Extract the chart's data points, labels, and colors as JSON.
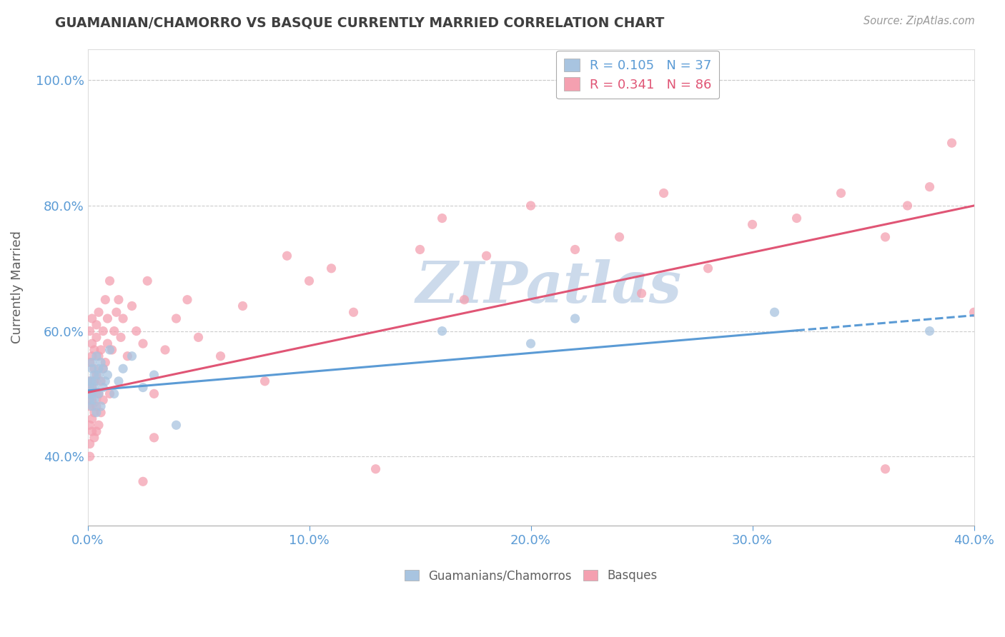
{
  "title": "GUAMANIAN/CHAMORRO VS BASQUE CURRENTLY MARRIED CORRELATION CHART",
  "source": "Source: ZipAtlas.com",
  "xlabel_legend1": "Guamanians/Chamorros",
  "xlabel_legend2": "Basques",
  "ylabel": "Currently Married",
  "r1": 0.105,
  "n1": 37,
  "r2": 0.341,
  "n2": 86,
  "color1": "#a8c4e0",
  "color2": "#f4a0b0",
  "line1_color": "#5b9bd5",
  "line2_color": "#e05575",
  "title_color": "#3f3f3f",
  "axis_color": "#5b9bd5",
  "watermark_color": "#ccdaeb",
  "xlim": [
    0.0,
    0.4
  ],
  "ylim": [
    0.29,
    1.05
  ],
  "yticks": [
    0.4,
    0.6,
    0.8,
    1.0
  ],
  "xticks": [
    0.0,
    0.1,
    0.2,
    0.3,
    0.4
  ],
  "guam_x": [
    0.001,
    0.001,
    0.001,
    0.001,
    0.002,
    0.002,
    0.002,
    0.002,
    0.002,
    0.003,
    0.003,
    0.003,
    0.004,
    0.004,
    0.004,
    0.005,
    0.005,
    0.005,
    0.006,
    0.006,
    0.007,
    0.007,
    0.008,
    0.009,
    0.01,
    0.012,
    0.014,
    0.016,
    0.02,
    0.025,
    0.03,
    0.04,
    0.16,
    0.2,
    0.22,
    0.31,
    0.38
  ],
  "guam_y": [
    0.5,
    0.52,
    0.49,
    0.51,
    0.54,
    0.48,
    0.55,
    0.5,
    0.52,
    0.51,
    0.53,
    0.49,
    0.56,
    0.47,
    0.52,
    0.54,
    0.5,
    0.53,
    0.55,
    0.48,
    0.54,
    0.51,
    0.52,
    0.53,
    0.57,
    0.5,
    0.52,
    0.54,
    0.56,
    0.51,
    0.53,
    0.45,
    0.6,
    0.58,
    0.62,
    0.63,
    0.6
  ],
  "guam_size": [
    80,
    80,
    80,
    80,
    80,
    80,
    80,
    80,
    80,
    80,
    80,
    80,
    80,
    80,
    80,
    80,
    80,
    80,
    80,
    80,
    80,
    80,
    80,
    80,
    80,
    80,
    80,
    80,
    80,
    80,
    80,
    80,
    80,
    80,
    80,
    80,
    80
  ],
  "basque_x": [
    0.001,
    0.001,
    0.001,
    0.001,
    0.001,
    0.001,
    0.001,
    0.001,
    0.002,
    0.002,
    0.002,
    0.002,
    0.002,
    0.002,
    0.002,
    0.003,
    0.003,
    0.003,
    0.003,
    0.003,
    0.004,
    0.004,
    0.004,
    0.004,
    0.004,
    0.005,
    0.005,
    0.005,
    0.005,
    0.006,
    0.006,
    0.006,
    0.007,
    0.007,
    0.007,
    0.008,
    0.008,
    0.009,
    0.009,
    0.01,
    0.01,
    0.011,
    0.012,
    0.013,
    0.014,
    0.015,
    0.016,
    0.018,
    0.02,
    0.022,
    0.025,
    0.027,
    0.03,
    0.035,
    0.04,
    0.045,
    0.05,
    0.06,
    0.07,
    0.08,
    0.09,
    0.1,
    0.11,
    0.12,
    0.15,
    0.16,
    0.17,
    0.18,
    0.2,
    0.22,
    0.24,
    0.26,
    0.28,
    0.3,
    0.32,
    0.34,
    0.36,
    0.37,
    0.38,
    0.39,
    0.03,
    0.025,
    0.13,
    0.25,
    0.36,
    0.4
  ],
  "basque_y": [
    0.5,
    0.45,
    0.55,
    0.4,
    0.6,
    0.48,
    0.52,
    0.42,
    0.56,
    0.44,
    0.58,
    0.51,
    0.46,
    0.62,
    0.49,
    0.54,
    0.43,
    0.57,
    0.52,
    0.47,
    0.59,
    0.44,
    0.53,
    0.61,
    0.48,
    0.56,
    0.5,
    0.45,
    0.63,
    0.52,
    0.47,
    0.57,
    0.6,
    0.54,
    0.49,
    0.65,
    0.55,
    0.58,
    0.62,
    0.5,
    0.68,
    0.57,
    0.6,
    0.63,
    0.65,
    0.59,
    0.62,
    0.56,
    0.64,
    0.6,
    0.58,
    0.68,
    0.5,
    0.57,
    0.62,
    0.65,
    0.59,
    0.56,
    0.64,
    0.52,
    0.72,
    0.68,
    0.7,
    0.63,
    0.73,
    0.78,
    0.65,
    0.72,
    0.8,
    0.73,
    0.75,
    0.82,
    0.7,
    0.77,
    0.78,
    0.82,
    0.75,
    0.8,
    0.83,
    0.9,
    0.43,
    0.36,
    0.38,
    0.66,
    0.38,
    0.63
  ],
  "line1_x0": 0.0,
  "line1_x1": 0.4,
  "line1_y0": 0.505,
  "line1_y1": 0.625,
  "line2_x0": 0.0,
  "line2_x1": 0.4,
  "line2_y0": 0.502,
  "line2_y1": 0.8
}
